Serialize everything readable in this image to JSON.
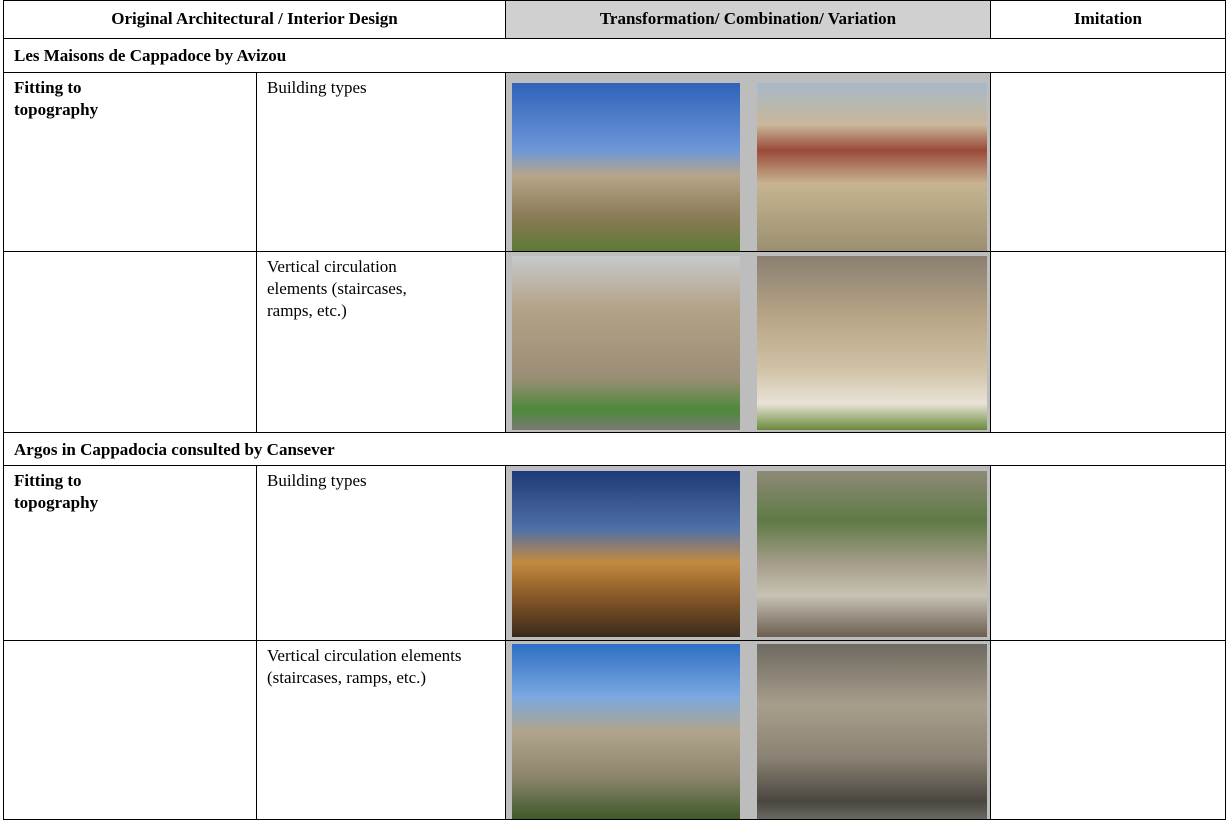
{
  "header": [
    "Original Architectural / Interior Design",
    "Transformation/ Combination/ Variation",
    "Imitation"
  ],
  "sections": [
    {
      "title": "Les Maisons de Cappadoce by Avizou",
      "rows": [
        {
          "criterion": "Fitting to topography",
          "element": "Building types"
        },
        {
          "element": "Vertical circulation elements (staircases, ramps, etc.)"
        }
      ]
    },
    {
      "title": "Argos in Cappadocia consulted by Cansever",
      "rows": [
        {
          "criterion": "Fitting to topography",
          "element": "Building types"
        },
        {
          "element": "Vertical circulation elements (staircases, ramps, etc.)"
        }
      ]
    }
  ]
}
